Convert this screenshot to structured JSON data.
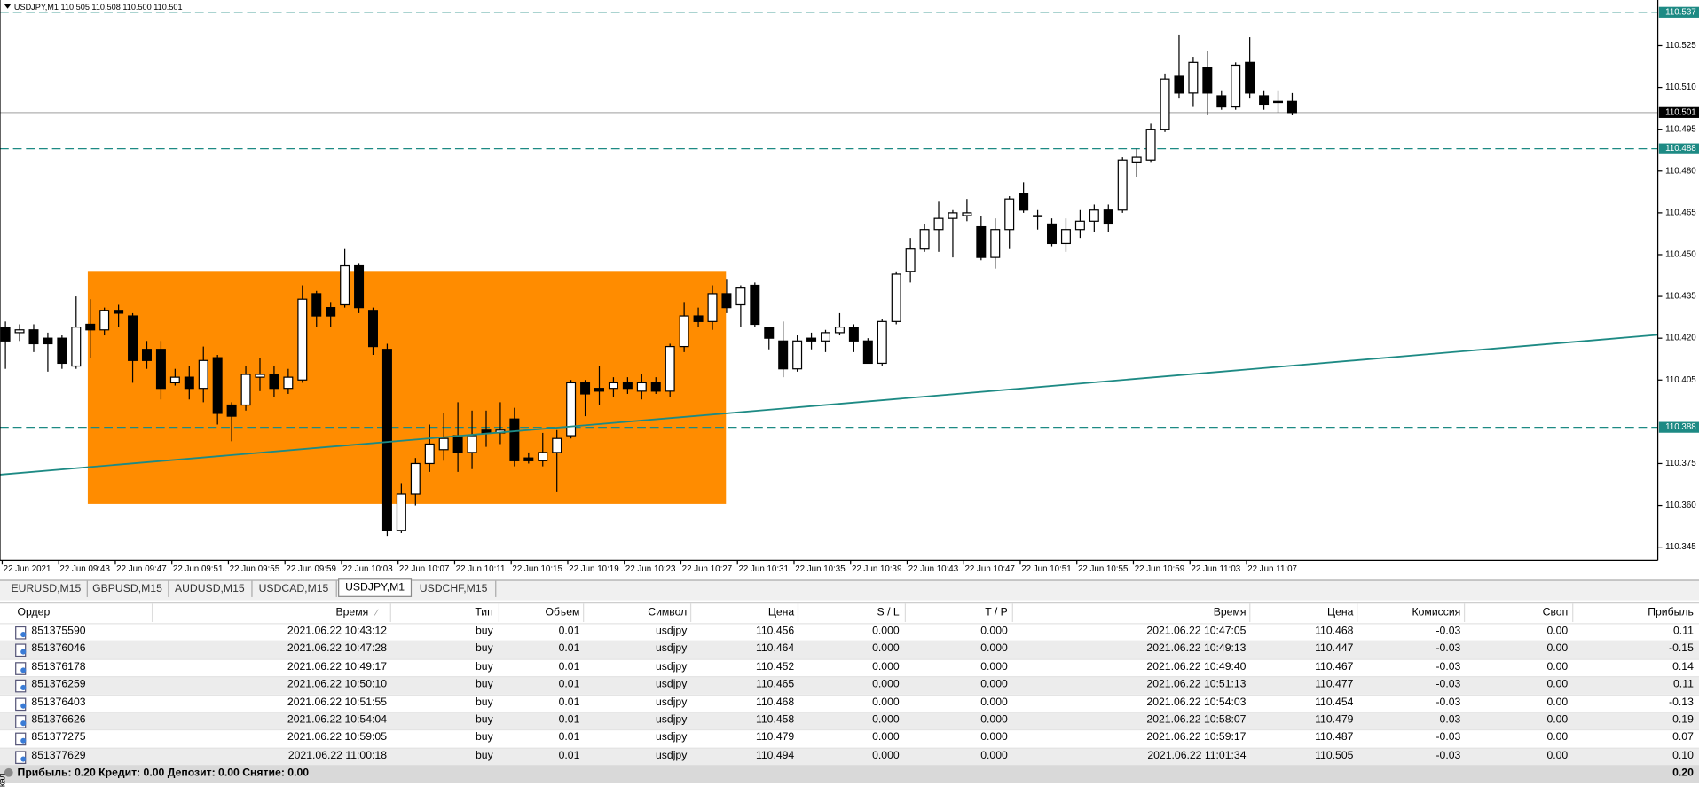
{
  "chart": {
    "header": "USDJPY,M1  110.505 110.508 110.500 110.501",
    "ylim": [
      110.3403,
      110.5414
    ],
    "yticks": [
      {
        "value": 110.525,
        "label": "110.525"
      },
      {
        "value": 110.51,
        "label": "110.510"
      },
      {
        "value": 110.495,
        "label": "110.495"
      },
      {
        "value": 110.48,
        "label": "110.480"
      },
      {
        "value": 110.465,
        "label": "110.465"
      },
      {
        "value": 110.45,
        "label": "110.450"
      },
      {
        "value": 110.435,
        "label": "110.435"
      },
      {
        "value": 110.42,
        "label": "110.420"
      },
      {
        "value": 110.405,
        "label": "110.405"
      },
      {
        "value": 110.375,
        "label": "110.375"
      },
      {
        "value": 110.36,
        "label": "110.360"
      },
      {
        "value": 110.345,
        "label": "110.345"
      }
    ],
    "price_lines": [
      {
        "price": 110.537,
        "color": "#1d8a84",
        "dashed": true
      },
      {
        "price": 110.501,
        "color": "#000000",
        "dashed": false
      },
      {
        "price": 110.488,
        "color": "#1d8a84",
        "dashed": true
      },
      {
        "price": 110.388,
        "color": "#1d8a84",
        "dashed": true
      }
    ],
    "x_labels": [
      "22 Jun 2021",
      "22 Jun 09:43",
      "22 Jun 09:47",
      "22 Jun 09:51",
      "22 Jun 09:55",
      "22 Jun 09:59",
      "22 Jun 10:03",
      "22 Jun 10:07",
      "22 Jun 10:11",
      "22 Jun 10:15",
      "22 Jun 10:19",
      "22 Jun 10:23",
      "22 Jun 10:27",
      "22 Jun 10:31",
      "22 Jun 10:35",
      "22 Jun 10:39",
      "22 Jun 10:43",
      "22 Jun 10:47",
      "22 Jun 10:51",
      "22 Jun 10:55",
      "22 Jun 10:59",
      "22 Jun 11:03",
      "22 Jun 11:07"
    ],
    "candles": [
      [
        110.424,
        110.426,
        110.409,
        110.419
      ],
      [
        110.422,
        110.425,
        110.419,
        110.423
      ],
      [
        110.423,
        110.425,
        110.415,
        110.418
      ],
      [
        110.42,
        110.422,
        110.408,
        110.418
      ],
      [
        110.42,
        110.421,
        110.409,
        110.411
      ],
      [
        110.41,
        110.435,
        110.409,
        110.424
      ],
      [
        110.425,
        110.434,
        110.413,
        110.423
      ],
      [
        110.423,
        110.431,
        110.421,
        110.43
      ],
      [
        110.43,
        110.432,
        110.424,
        110.429
      ],
      [
        110.428,
        110.429,
        110.404,
        110.412
      ],
      [
        110.416,
        110.419,
        110.409,
        110.412
      ],
      [
        110.416,
        110.419,
        110.398,
        110.402
      ],
      [
        110.404,
        110.409,
        110.403,
        110.406
      ],
      [
        110.406,
        110.41,
        110.398,
        110.402
      ],
      [
        110.402,
        110.417,
        110.397,
        110.412
      ],
      [
        110.413,
        110.414,
        110.389,
        110.393
      ],
      [
        110.396,
        110.397,
        110.383,
        110.392
      ],
      [
        110.396,
        110.41,
        110.394,
        110.407
      ],
      [
        110.406,
        110.413,
        110.401,
        110.407
      ],
      [
        110.407,
        110.41,
        110.399,
        110.402
      ],
      [
        110.402,
        110.409,
        110.4,
        110.406
      ],
      [
        110.405,
        110.439,
        110.404,
        110.434
      ],
      [
        110.436,
        110.437,
        110.424,
        110.428
      ],
      [
        110.431,
        110.433,
        110.424,
        110.428
      ],
      [
        110.432,
        110.452,
        110.431,
        110.446
      ],
      [
        110.446,
        110.447,
        110.429,
        110.431
      ],
      [
        110.43,
        110.431,
        110.414,
        110.417
      ],
      [
        110.416,
        110.418,
        110.349,
        110.351
      ],
      [
        110.351,
        110.368,
        110.35,
        110.364
      ],
      [
        110.364,
        110.377,
        110.36,
        110.375
      ],
      [
        110.375,
        110.389,
        110.372,
        110.382
      ],
      [
        110.38,
        110.393,
        110.376,
        110.384
      ],
      [
        110.385,
        110.397,
        110.372,
        110.379
      ],
      [
        110.379,
        110.394,
        110.373,
        110.385
      ],
      [
        110.387,
        110.394,
        110.381,
        110.386
      ],
      [
        110.386,
        110.397,
        110.382,
        110.387
      ],
      [
        110.391,
        110.395,
        110.374,
        110.376
      ],
      [
        110.377,
        110.379,
        110.375,
        110.376
      ],
      [
        110.376,
        110.386,
        110.374,
        110.379
      ],
      [
        110.379,
        110.387,
        110.365,
        110.384
      ],
      [
        110.385,
        110.405,
        110.384,
        110.404
      ],
      [
        110.404,
        110.405,
        110.392,
        110.4
      ],
      [
        110.402,
        110.41,
        110.396,
        110.401
      ],
      [
        110.402,
        110.406,
        110.399,
        110.404
      ],
      [
        110.404,
        110.406,
        110.4,
        110.402
      ],
      [
        110.401,
        110.407,
        110.398,
        110.404
      ],
      [
        110.404,
        110.406,
        110.4,
        110.401
      ],
      [
        110.401,
        110.418,
        110.399,
        110.417
      ],
      [
        110.417,
        110.433,
        110.415,
        110.428
      ],
      [
        110.428,
        110.431,
        110.424,
        110.426
      ],
      [
        110.426,
        110.439,
        110.423,
        110.436
      ],
      [
        110.436,
        110.441,
        110.429,
        110.431
      ],
      [
        110.432,
        110.439,
        110.424,
        110.438
      ],
      [
        110.439,
        110.44,
        110.424,
        110.425
      ],
      [
        110.424,
        110.424,
        110.416,
        110.42
      ],
      [
        110.419,
        110.426,
        110.406,
        110.409
      ],
      [
        110.409,
        110.421,
        110.408,
        110.419
      ],
      [
        110.42,
        110.422,
        110.416,
        110.419
      ],
      [
        110.419,
        110.423,
        110.415,
        110.422
      ],
      [
        110.422,
        110.429,
        110.421,
        110.424
      ],
      [
        110.424,
        110.425,
        110.415,
        110.419
      ],
      [
        110.419,
        110.42,
        110.411,
        110.411
      ],
      [
        110.411,
        110.427,
        110.41,
        110.426
      ],
      [
        110.426,
        110.444,
        110.425,
        110.443
      ],
      [
        110.444,
        110.456,
        110.44,
        110.452
      ],
      [
        110.452,
        110.461,
        110.451,
        110.459
      ],
      [
        110.459,
        110.469,
        110.451,
        110.463
      ],
      [
        110.463,
        110.466,
        110.449,
        110.465
      ],
      [
        110.464,
        110.47,
        110.462,
        110.465
      ],
      [
        110.46,
        110.464,
        110.448,
        110.449
      ],
      [
        110.449,
        110.463,
        110.445,
        110.459
      ],
      [
        110.459,
        110.471,
        110.452,
        110.47
      ],
      [
        110.472,
        110.476,
        110.465,
        110.466
      ],
      [
        110.464,
        110.466,
        110.459,
        110.464
      ],
      [
        110.461,
        110.463,
        110.453,
        110.454
      ],
      [
        110.454,
        110.463,
        110.451,
        110.459
      ],
      [
        110.459,
        110.466,
        110.456,
        110.462
      ],
      [
        110.462,
        110.468,
        110.458,
        110.466
      ],
      [
        110.466,
        110.468,
        110.458,
        110.461
      ],
      [
        110.466,
        110.485,
        110.465,
        110.484
      ],
      [
        110.483,
        110.488,
        110.478,
        110.485
      ],
      [
        110.484,
        110.497,
        110.483,
        110.495
      ],
      [
        110.495,
        110.515,
        110.494,
        110.513
      ],
      [
        110.514,
        110.529,
        110.506,
        110.508
      ],
      [
        110.508,
        110.521,
        110.503,
        110.519
      ],
      [
        110.517,
        110.523,
        110.5,
        110.508
      ],
      [
        110.507,
        110.509,
        110.502,
        110.503
      ],
      [
        110.503,
        110.519,
        110.502,
        110.518
      ],
      [
        110.519,
        110.528,
        110.506,
        110.508
      ],
      [
        110.507,
        110.509,
        110.502,
        110.504
      ],
      [
        110.505,
        110.509,
        110.501,
        110.505
      ],
      [
        110.505,
        110.508,
        110.5,
        110.501
      ]
    ]
  },
  "tabs": [
    "EURUSD,M15",
    "GBPUSD,M15",
    "AUDUSD,M15",
    "USDCAD,M15",
    "USDJPY,M1",
    "USDCHF,M15"
  ],
  "active_tab": 4,
  "side_label": "кал",
  "table": {
    "headers": [
      "Ордер",
      "Время",
      "Тип",
      "Объем",
      "Символ",
      "Цена",
      "S / L",
      "T / P",
      "Время",
      "Цена",
      "Комиссия",
      "Своп",
      "Прибыль"
    ],
    "rows": [
      [
        "851375590",
        "2021.06.22 10:43:12",
        "buy",
        "0.01",
        "usdjpy",
        "110.456",
        "0.000",
        "0.000",
        "2021.06.22 10:47:05",
        "110.468",
        "-0.03",
        "0.00",
        "0.11"
      ],
      [
        "851376046",
        "2021.06.22 10:47:28",
        "buy",
        "0.01",
        "usdjpy",
        "110.464",
        "0.000",
        "0.000",
        "2021.06.22 10:49:13",
        "110.447",
        "-0.03",
        "0.00",
        "-0.15"
      ],
      [
        "851376178",
        "2021.06.22 10:49:17",
        "buy",
        "0.01",
        "usdjpy",
        "110.452",
        "0.000",
        "0.000",
        "2021.06.22 10:49:40",
        "110.467",
        "-0.03",
        "0.00",
        "0.14"
      ],
      [
        "851376259",
        "2021.06.22 10:50:10",
        "buy",
        "0.01",
        "usdjpy",
        "110.465",
        "0.000",
        "0.000",
        "2021.06.22 10:51:13",
        "110.477",
        "-0.03",
        "0.00",
        "0.11"
      ],
      [
        "851376403",
        "2021.06.22 10:51:55",
        "buy",
        "0.01",
        "usdjpy",
        "110.468",
        "0.000",
        "0.000",
        "2021.06.22 10:54:03",
        "110.454",
        "-0.03",
        "0.00",
        "-0.13"
      ],
      [
        "851376626",
        "2021.06.22 10:54:04",
        "buy",
        "0.01",
        "usdjpy",
        "110.458",
        "0.000",
        "0.000",
        "2021.06.22 10:58:07",
        "110.479",
        "-0.03",
        "0.00",
        "0.19"
      ],
      [
        "851377275",
        "2021.06.22 10:59:05",
        "buy",
        "0.01",
        "usdjpy",
        "110.479",
        "0.000",
        "0.000",
        "2021.06.22 10:59:17",
        "110.487",
        "-0.03",
        "0.00",
        "0.07"
      ],
      [
        "851377629",
        "2021.06.22 11:00:18",
        "buy",
        "0.01",
        "usdjpy",
        "110.494",
        "0.000",
        "0.000",
        "2021.06.22 11:01:34",
        "110.505",
        "-0.03",
        "0.00",
        "0.10"
      ]
    ],
    "summary": "Прибыль: 0.20  Кредит: 0.00  Депозит: 0.00  Снятие: 0.00",
    "total": "0.20"
  }
}
